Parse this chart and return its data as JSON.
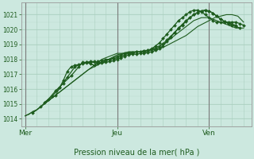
{
  "bg_color": "#cce8df",
  "grid_color_major": "#aacfbf",
  "grid_color_minor": "#bbddd0",
  "line_color": "#1e5c1e",
  "vline_color": "#7a7a7a",
  "xlabel": "Pression niveau de la mer( hPa )",
  "ylim": [
    1013.5,
    1021.8
  ],
  "yticks": [
    1014,
    1015,
    1016,
    1017,
    1018,
    1019,
    1020,
    1021
  ],
  "xtick_labels": [
    "Mer",
    "Jeu",
    "Ven"
  ],
  "xtick_positions": [
    0,
    48,
    96
  ],
  "vline_positions": [
    0,
    48,
    96
  ],
  "xlim": [
    -2,
    118
  ],
  "series_dotted": [
    {
      "x": [
        0,
        2,
        4,
        6,
        8,
        10,
        12,
        14,
        16,
        18,
        20,
        22,
        24,
        26,
        28,
        30,
        32,
        34,
        36,
        38,
        40,
        42,
        44,
        46,
        48,
        50,
        52,
        54,
        56,
        58,
        60,
        62,
        64,
        66,
        68,
        70,
        72,
        74,
        76,
        78,
        80,
        82,
        84,
        86,
        88,
        90,
        92,
        94,
        96,
        98,
        100,
        102,
        104,
        106,
        108,
        110,
        112,
        114
      ],
      "y": [
        1014.2,
        1014.3,
        1014.5,
        1014.6,
        1014.8,
        1015.0,
        1015.2,
        1015.4,
        1015.6,
        1015.8,
        1016.0,
        1016.2,
        1016.4,
        1016.6,
        1016.8,
        1017.0,
        1017.2,
        1017.4,
        1017.6,
        1017.8,
        1018.0,
        1018.1,
        1018.2,
        1018.3,
        1018.4,
        1018.4,
        1018.4,
        1018.5,
        1018.5,
        1018.5,
        1018.5,
        1018.6,
        1018.6,
        1018.7,
        1018.8,
        1018.9,
        1019.0,
        1019.2,
        1019.4,
        1019.6,
        1019.8,
        1020.0,
        1020.2,
        1020.4,
        1020.6,
        1020.7,
        1020.8,
        1020.8,
        1020.8,
        1020.7,
        1020.6,
        1020.5,
        1020.4,
        1020.3,
        1020.2,
        1020.1,
        1020.1,
        1020.1
      ]
    },
    {
      "x": [
        0,
        3,
        6,
        9,
        12,
        15,
        18,
        21,
        24,
        27,
        30,
        33,
        36,
        39,
        42,
        45,
        48,
        51,
        54,
        57,
        60,
        63,
        66,
        69,
        72,
        75,
        78,
        81,
        84,
        87,
        90,
        93,
        96,
        99,
        102,
        105,
        108,
        111,
        114
      ],
      "y": [
        1014.2,
        1014.4,
        1014.6,
        1014.9,
        1015.2,
        1015.5,
        1015.8,
        1016.1,
        1016.4,
        1016.7,
        1017.0,
        1017.3,
        1017.5,
        1017.7,
        1017.9,
        1018.1,
        1018.3,
        1018.4,
        1018.5,
        1018.5,
        1018.5,
        1018.5,
        1018.6,
        1018.7,
        1018.8,
        1019.0,
        1019.2,
        1019.4,
        1019.6,
        1019.9,
        1020.2,
        1020.4,
        1020.6,
        1020.8,
        1020.9,
        1021.0,
        1021.0,
        1020.9,
        1020.5
      ]
    }
  ],
  "series_marked": [
    {
      "x": [
        4,
        8,
        12,
        16,
        20,
        24,
        28,
        30,
        32,
        34,
        36,
        38,
        40,
        42,
        44,
        46,
        48,
        50,
        52,
        54,
        56,
        58,
        60,
        62,
        64,
        66,
        68,
        70,
        72,
        74,
        76,
        78,
        80,
        82,
        84,
        86,
        88,
        90,
        92,
        94,
        96,
        98,
        100,
        102,
        104,
        106,
        108,
        110,
        112,
        114
      ],
      "y": [
        1014.4,
        1014.8,
        1015.3,
        1015.9,
        1016.4,
        1016.9,
        1017.5,
        1017.8,
        1017.8,
        1017.7,
        1017.6,
        1017.7,
        1017.8,
        1017.9,
        1018.0,
        1018.1,
        1018.2,
        1018.3,
        1018.4,
        1018.4,
        1018.4,
        1018.5,
        1018.5,
        1018.5,
        1018.6,
        1018.7,
        1018.9,
        1019.1,
        1019.4,
        1019.7,
        1020.0,
        1020.3,
        1020.6,
        1020.8,
        1021.0,
        1021.2,
        1021.3,
        1021.3,
        1021.2,
        1021.0,
        1020.8,
        1020.6,
        1020.5,
        1020.5,
        1020.5,
        1020.5,
        1020.5,
        1020.5,
        1020.4,
        1020.3
      ]
    },
    {
      "x": [
        10,
        14,
        18,
        22,
        26,
        30,
        32,
        34,
        36,
        38,
        40,
        42,
        44,
        46,
        48,
        50,
        52,
        54,
        56,
        58,
        60,
        62,
        64,
        66,
        68,
        70,
        72,
        74,
        76,
        78,
        80,
        82,
        84,
        86,
        88,
        90,
        92,
        94,
        96,
        98,
        100,
        102,
        104,
        106,
        108,
        110
      ],
      "y": [
        1015.1,
        1015.5,
        1016.1,
        1016.8,
        1017.5,
        1017.75,
        1017.8,
        1017.85,
        1017.85,
        1017.8,
        1017.75,
        1017.8,
        1017.85,
        1017.9,
        1018.0,
        1018.1,
        1018.2,
        1018.3,
        1018.35,
        1018.35,
        1018.4,
        1018.4,
        1018.45,
        1018.5,
        1018.6,
        1018.7,
        1018.9,
        1019.2,
        1019.5,
        1019.8,
        1020.1,
        1020.35,
        1020.6,
        1020.8,
        1021.0,
        1021.15,
        1021.25,
        1021.3,
        1021.25,
        1021.1,
        1020.9,
        1020.7,
        1020.55,
        1020.45,
        1020.35,
        1020.3
      ]
    },
    {
      "x": [
        16,
        18,
        20,
        22,
        24,
        26,
        28,
        30,
        32,
        34,
        36,
        38,
        40,
        42,
        44,
        46,
        48,
        50,
        52,
        54,
        56,
        58,
        60,
        62,
        64,
        66,
        68,
        70,
        72,
        74,
        76,
        78,
        80,
        82,
        84,
        86,
        88,
        90,
        92,
        94,
        96,
        98,
        100,
        102,
        104,
        106,
        108,
        110,
        112
      ],
      "y": [
        1015.6,
        1016.1,
        1016.6,
        1017.2,
        1017.5,
        1017.6,
        1017.65,
        1017.7,
        1017.75,
        1017.8,
        1017.8,
        1017.85,
        1017.9,
        1018.0,
        1018.0,
        1018.05,
        1018.1,
        1018.2,
        1018.3,
        1018.4,
        1018.45,
        1018.5,
        1018.5,
        1018.55,
        1018.6,
        1018.65,
        1018.7,
        1018.85,
        1019.05,
        1019.3,
        1019.55,
        1019.8,
        1020.05,
        1020.3,
        1020.55,
        1020.8,
        1021.0,
        1021.15,
        1021.25,
        1021.3,
        1021.25,
        1021.1,
        1020.9,
        1020.7,
        1020.55,
        1020.4,
        1020.3,
        1020.2,
        1020.1
      ]
    }
  ]
}
